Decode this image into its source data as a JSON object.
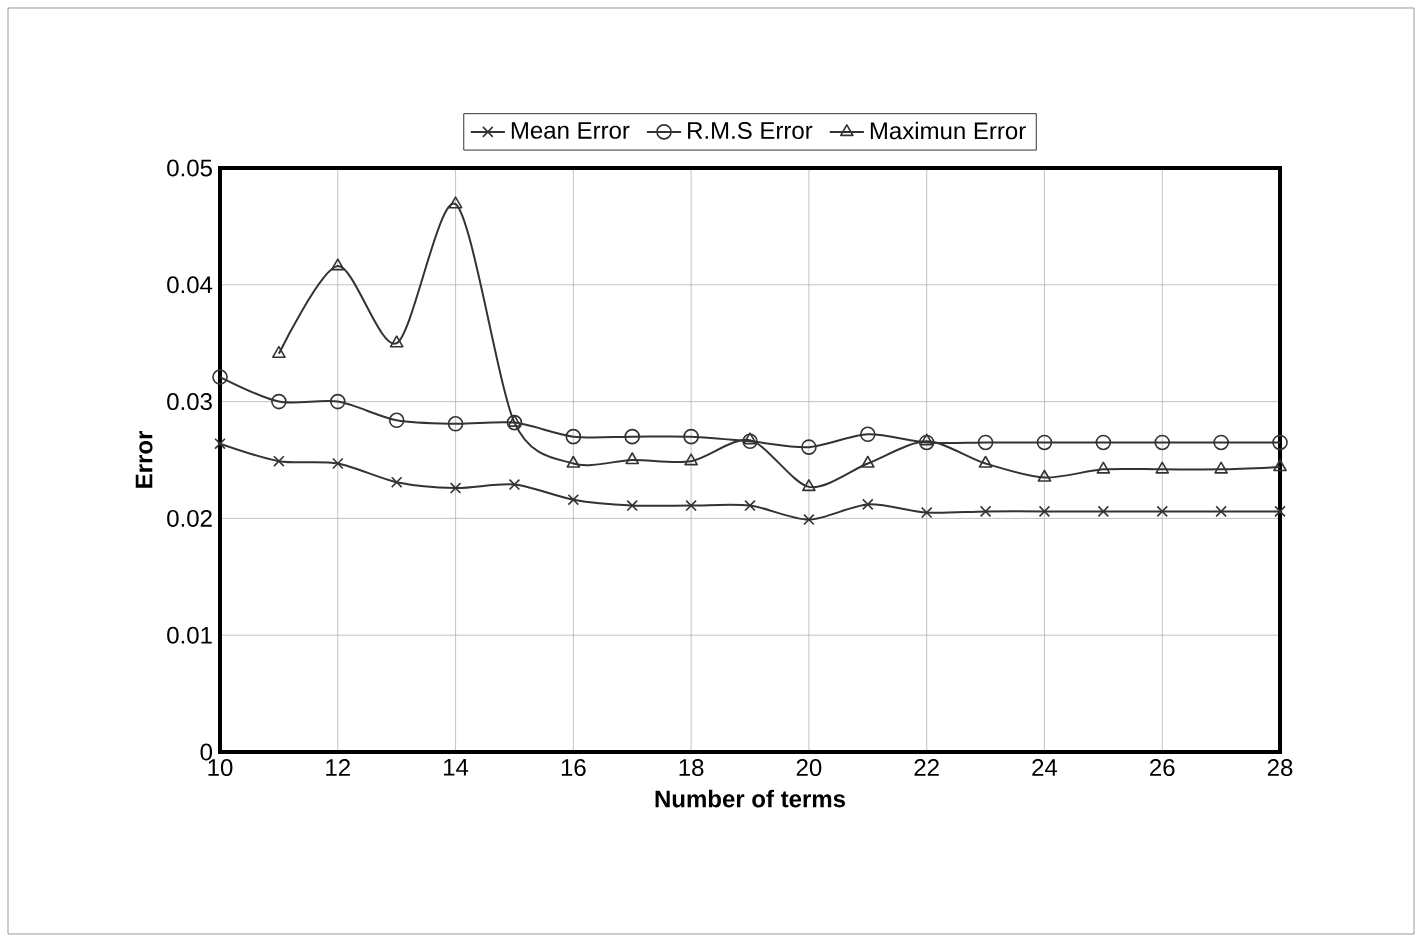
{
  "chart_data": {
    "type": "line",
    "xlabel": "Number of terms",
    "ylabel": "Error",
    "x": [
      10,
      11,
      12,
      13,
      14,
      15,
      16,
      17,
      18,
      19,
      20,
      21,
      22,
      23,
      24,
      25,
      26,
      27,
      28
    ],
    "series": [
      {
        "name": "Mean Error",
        "color": "#333333",
        "marker": "cross",
        "values": [
          0.0264,
          0.0249,
          0.0247,
          0.0231,
          0.0226,
          0.0229,
          0.0216,
          0.0211,
          0.0211,
          0.0211,
          0.0199,
          0.0212,
          0.0205,
          0.0206,
          0.0206,
          0.0206,
          0.0206,
          0.0206,
          0.0206
        ]
      },
      {
        "name": "R.M.S Error",
        "color": "#333333",
        "marker": "circle",
        "values": [
          0.0321,
          0.03,
          0.03,
          0.0284,
          0.0281,
          0.0282,
          0.027,
          0.027,
          0.027,
          0.0266,
          0.0261,
          0.0272,
          0.0265,
          0.0265,
          0.0265,
          0.0265,
          0.0265,
          0.0265,
          0.0265
        ]
      },
      {
        "name": "Maximun Error",
        "color": "#333333",
        "marker": "triangle",
        "values": [
          null,
          0.0341,
          0.0416,
          0.035,
          0.0469,
          0.0282,
          0.0247,
          0.025,
          0.0249,
          0.0267,
          0.0227,
          0.0247,
          0.0266,
          0.0247,
          0.0235,
          0.0242,
          0.0242,
          0.0242,
          0.0244
        ]
      }
    ],
    "xlim": [
      10,
      28
    ],
    "xticks": [
      10,
      12,
      14,
      16,
      18,
      20,
      22,
      24,
      26,
      28
    ],
    "ylim": [
      0,
      0.05
    ],
    "yticks": [
      0,
      0.01,
      0.02,
      0.03,
      0.04,
      0.05
    ],
    "grid": true,
    "legend": "top",
    "line_style": "solid"
  }
}
